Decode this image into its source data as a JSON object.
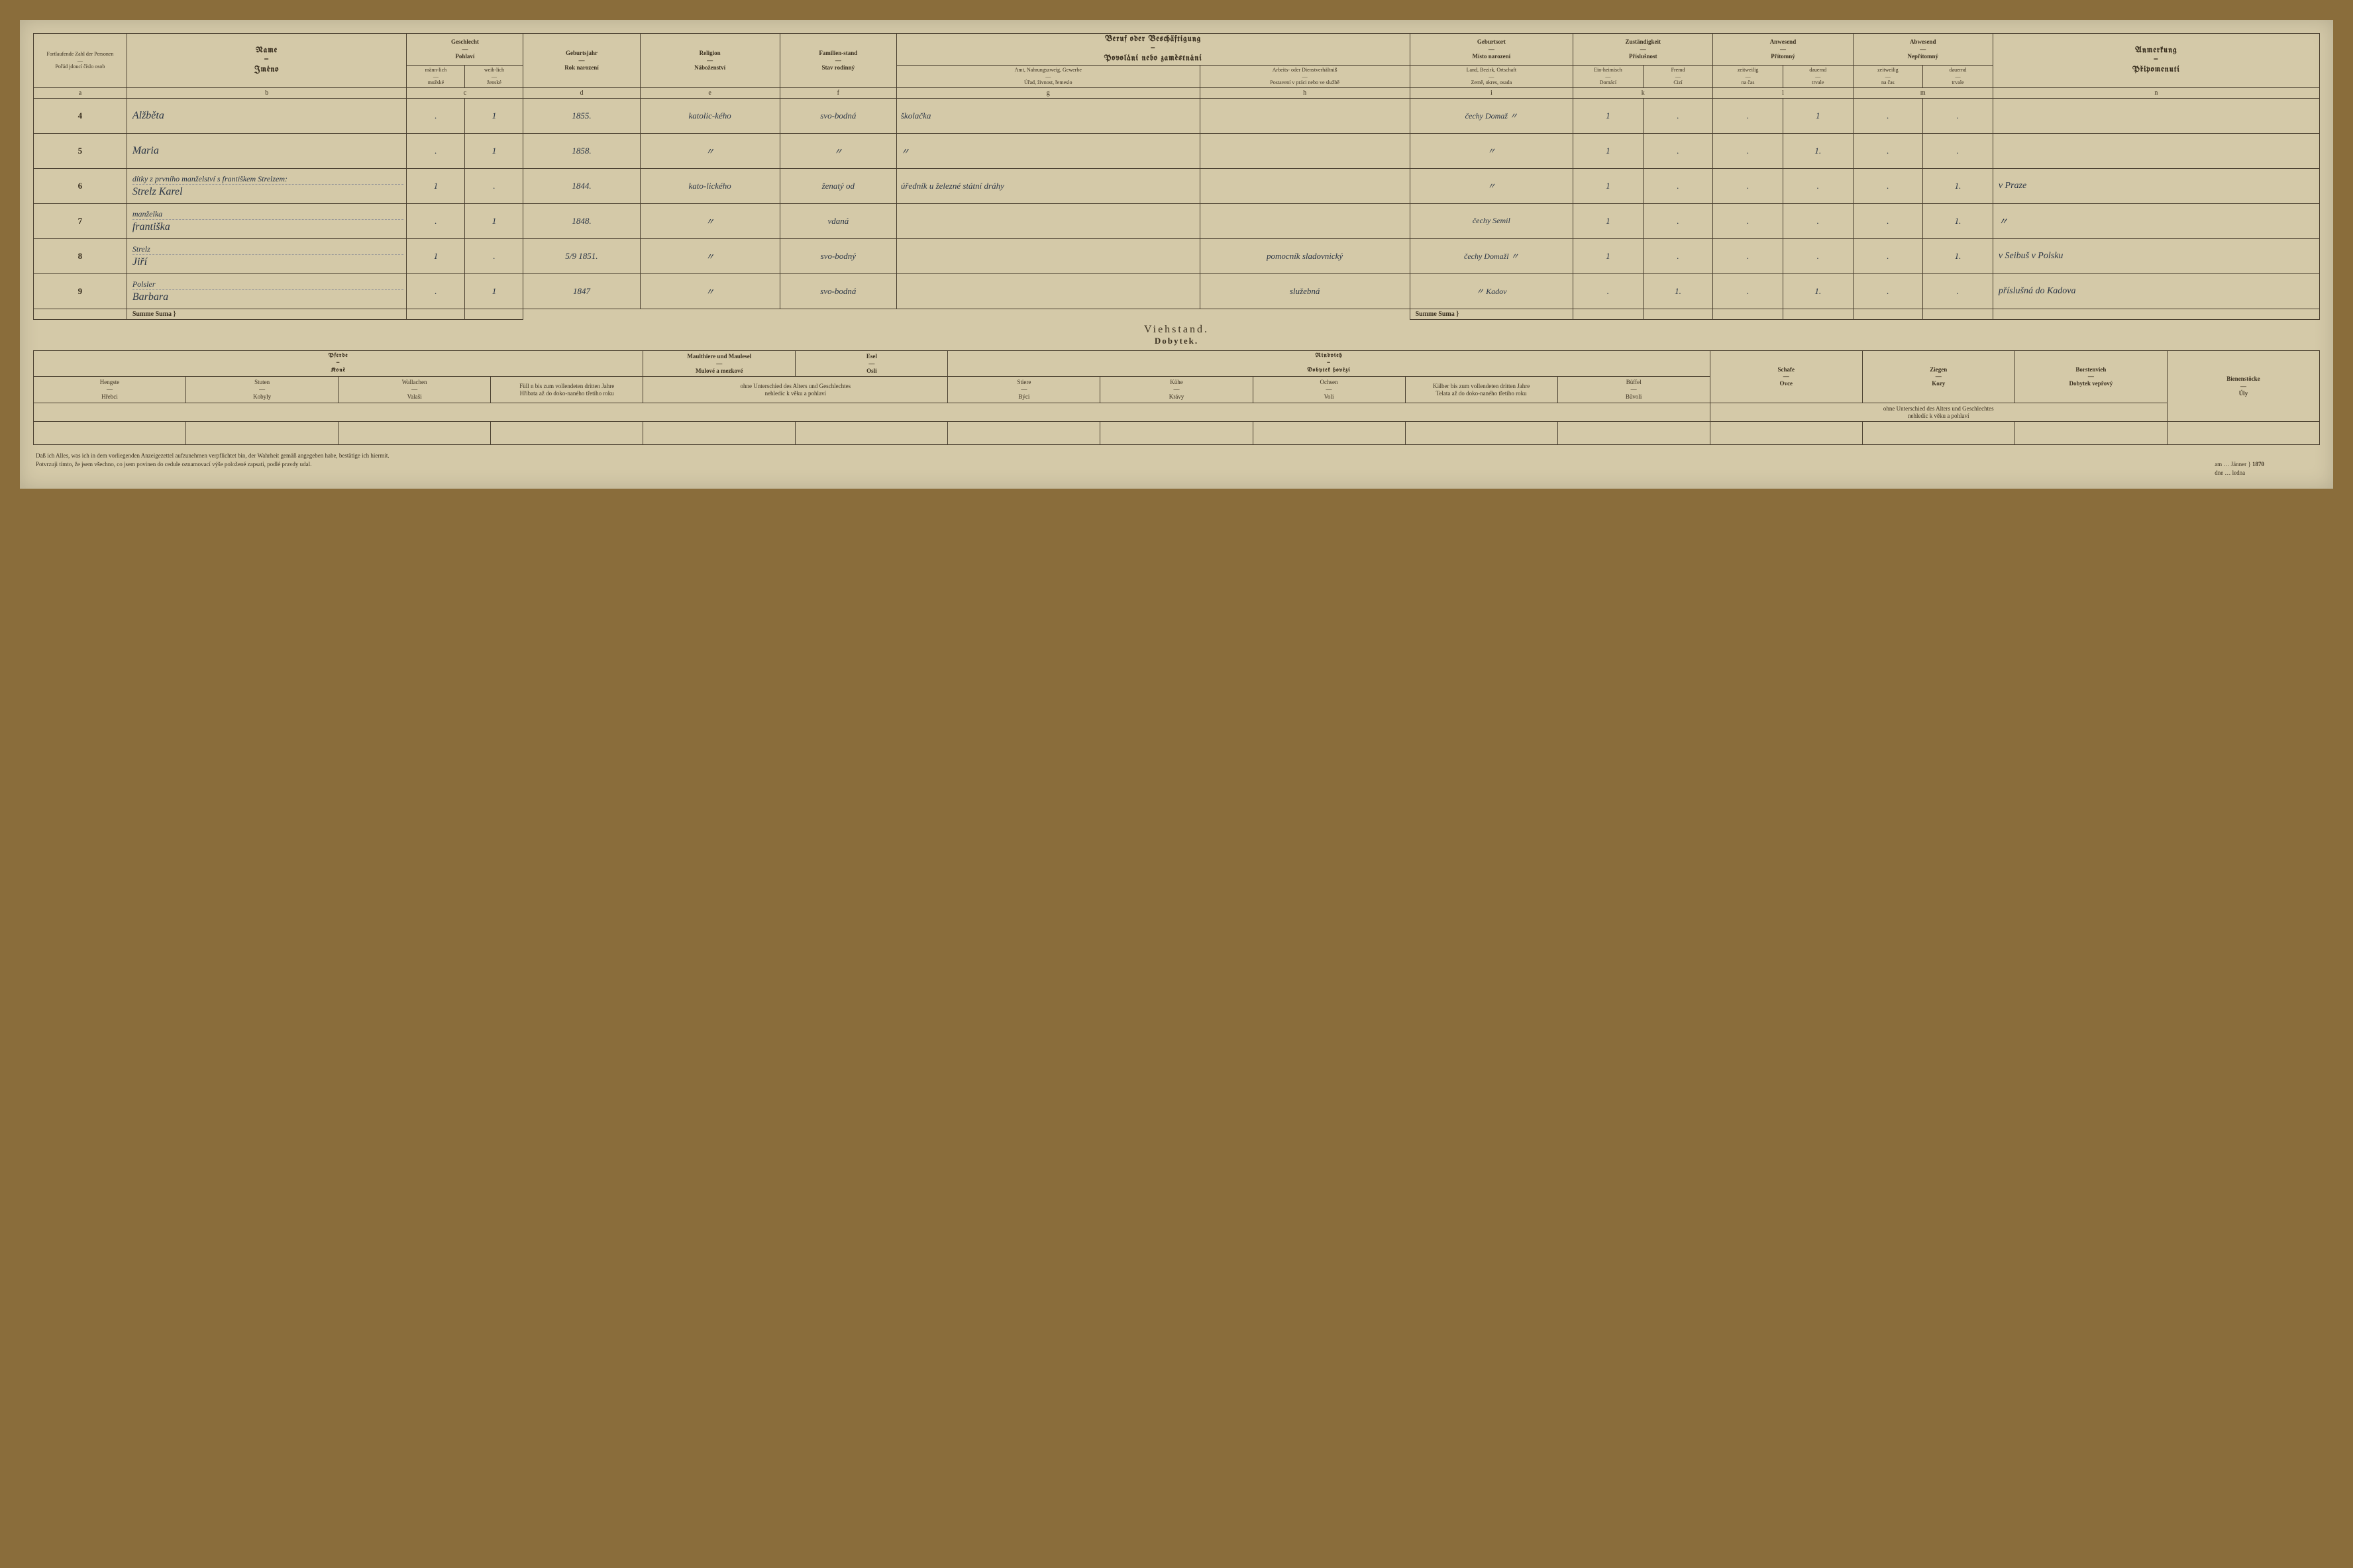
{
  "headers": {
    "col_a": {
      "de": "Fortlaufende Zahl der Personen",
      "sep": "—",
      "cz": "Pořád jdoucí číslo osob"
    },
    "col_b": {
      "de": "Name",
      "sep": "—",
      "cz": "Jméno"
    },
    "col_c": {
      "de": "Geschlecht",
      "sep": "—",
      "cz": "Pohlaví",
      "sub_m_de": "männ-lich",
      "sub_f_de": "weib-lich",
      "sub_m_cz": "mužské",
      "sub_f_cz": "ženské"
    },
    "col_d": {
      "de": "Geburtsjahr",
      "sep": "—",
      "cz": "Rok narození"
    },
    "col_e": {
      "de": "Religion",
      "sep": "—",
      "cz": "Náboženství"
    },
    "col_f": {
      "de": "Familien-stand",
      "sep": "—",
      "cz": "Stav rodinný"
    },
    "col_gh": {
      "de": "Beruf oder Beschäftigung",
      "sep": "—",
      "cz": "Povolání nebo zaměstnání",
      "g_de": "Amt, Nahrungszweig, Gewerbe",
      "g_cz": "Úřad, živnost, řemeslo",
      "h_de": "Arbeits- oder Dienstverhältniß",
      "h_cz": "Postavení v práci nebo ve službě"
    },
    "col_i": {
      "de": "Geburtsort",
      "sep": "—",
      "cz": "Místo narození",
      "sub_de": "Land, Bezirk, Ortschaft",
      "sub_cz": "Země, okres, osada"
    },
    "col_k": {
      "de": "Zuständigkeit",
      "sep": "—",
      "cz": "Příslušnost",
      "sub1_de": "Ein-heimisch",
      "sub1_cz": "Domácí",
      "sub2_de": "Fremd",
      "sub2_cz": "Cizí"
    },
    "col_l": {
      "de": "Anwesend",
      "sep": "—",
      "cz": "Přítomný",
      "sub1_de": "zeitweilig",
      "sub1_cz": "na čas",
      "sub2_de": "dauernd",
      "sub2_cz": "trvale"
    },
    "col_m": {
      "de": "Abwesend",
      "sep": "—",
      "cz": "Nepřítomný",
      "sub1_de": "zeitweilig",
      "sub1_cz": "na čas",
      "sub2_de": "dauernd",
      "sub2_cz": "trvale"
    },
    "col_n": {
      "de": "Anmerkung",
      "sep": "—",
      "cz": "Připomenutí"
    }
  },
  "col_letters": [
    "a",
    "b",
    "c",
    "",
    "d",
    "e",
    "f",
    "g",
    "h",
    "i",
    "k",
    "",
    "l",
    "",
    "m",
    "",
    "n"
  ],
  "rows": [
    {
      "n": "4",
      "name": "Alžběta",
      "m": ".",
      "f": "1",
      "year": "1855.",
      "rel": "katolic-kého",
      "fam": "svo-bodná",
      "occ": "školačka",
      "work": "",
      "birth": "čechy Domaž 〃",
      "dom": "1",
      "for": ".",
      "pz": ".",
      "pd": "1",
      "az": ".",
      "ad": ".",
      "note": ""
    },
    {
      "n": "5",
      "name": "Maria",
      "m": ".",
      "f": "1",
      "year": "1858.",
      "rel": "〃",
      "fam": "〃",
      "occ": "〃",
      "work": "",
      "birth": "〃",
      "dom": "1",
      "for": ".",
      "pz": ".",
      "pd": "1.",
      "az": ".",
      "ad": ".",
      "note": ""
    },
    {
      "n": "6",
      "name_top": "dítky z prvního manželství s františkem Strelzem:",
      "name": "Strelz Karel",
      "m": "1",
      "f": ".",
      "year": "1844.",
      "rel": "kato-lického",
      "fam": "ženatý od",
      "occ": "úředník u železné státní dráhy",
      "work": "",
      "birth": "〃",
      "dom": "1",
      "for": ".",
      "pz": ".",
      "pd": ".",
      "az": ".",
      "ad": "1.",
      "note": "v Praze"
    },
    {
      "n": "7",
      "name_top": "manželka",
      "name": "františka",
      "m": ".",
      "f": "1",
      "year": "1848.",
      "rel": "〃",
      "fam": "vdaná",
      "occ": "",
      "work": "",
      "birth": "čechy Semil",
      "dom": "1",
      "for": ".",
      "pz": ".",
      "pd": ".",
      "az": ".",
      "ad": "1.",
      "note": "〃"
    },
    {
      "n": "8",
      "name_top": "Strelz",
      "name": "Jiří",
      "m": "1",
      "f": ".",
      "year": "5/9 1851.",
      "rel": "〃",
      "fam": "svo-bodný",
      "occ": "",
      "work": "pomocník sladovnický",
      "birth": "čechy Domažl 〃",
      "dom": "1",
      "for": ".",
      "pz": ".",
      "pd": ".",
      "az": ".",
      "ad": "1.",
      "note": "v Seibuš v Polsku"
    },
    {
      "n": "9",
      "name_top": "Polsler",
      "name": "Barbara",
      "m": ".",
      "f": "1",
      "year": "1847",
      "rel": "〃",
      "fam": "svo-bodná",
      "occ": "",
      "work": "služebná",
      "birth": "〃 Kadov",
      "dom": ".",
      "for": "1.",
      "pz": ".",
      "pd": "1.",
      "az": ".",
      "ad": ".",
      "note": "příslušná do Kadova"
    }
  ],
  "summe": {
    "label": "Summe Suma }"
  },
  "livestock": {
    "title_de": "Viehstand.",
    "title_cz": "Dobytek.",
    "pferde": {
      "de": "Pferde",
      "cz": "Koně",
      "hengste_de": "Hengste",
      "hengste_cz": "Hřebci",
      "stuten_de": "Stuten",
      "stuten_cz": "Kobyly",
      "wallachen_de": "Wallachen",
      "wallachen_cz": "Valaši",
      "fohlen_de": "Füll n bis zum vollendeten dritten Jahre",
      "fohlen_cz": "Hříbata až do doko-naného třetího roku"
    },
    "maul": {
      "de": "Maulthiere und Maulesel",
      "cz": "Mulové a mezkové"
    },
    "esel": {
      "de": "Esel",
      "cz": "Osli"
    },
    "note_age": {
      "de": "ohne Unterschied des Alters und Geschlechtes",
      "cz": "nehledíc k věku a pohlaví"
    },
    "rind": {
      "de": "Rindvieh",
      "cz": "Dobytek hovězí",
      "stiere_de": "Stiere",
      "stiere_cz": "Býci",
      "kuhe_de": "Kühe",
      "kuhe_cz": "Krávy",
      "ochsen_de": "Ochsen",
      "ochsen_cz": "Voli",
      "kalber_de": "Kälber bis zum vollendeten dritten Jahre",
      "kalber_cz": "Telata až do doko-naného třetího roku",
      "buffel_de": "Büffel",
      "buffel_cz": "Bůvoli"
    },
    "schafe": {
      "de": "Schafe",
      "cz": "Ovce"
    },
    "ziegen": {
      "de": "Ziegen",
      "cz": "Kozy"
    },
    "borst": {
      "de": "Borstenvieh",
      "cz": "Dobytek vepřový"
    },
    "bienen": {
      "de": "Bienenstöcke",
      "cz": "Úly"
    },
    "note_age2": {
      "de": "ohne Unterschied des Alters und Geschlechtes",
      "cz": "nehledíc k věku a pohlaví"
    }
  },
  "footer": {
    "line1": "Daß ich Alles, was ich in dem vorliegenden Anzeigezettel aufzunehmen verpflichtet bin, der Wahrheit gemäß angegeben habe, bestätige ich hiermit.",
    "line2": "Potvrzuji tímto, že jsem všechno, co jsem povinen do cedule oznamovací výše položené zapsati, podlé pravdy udal.",
    "date_de": "am … Jänner",
    "date_cz": "dne … ledna",
    "year": "1870"
  }
}
